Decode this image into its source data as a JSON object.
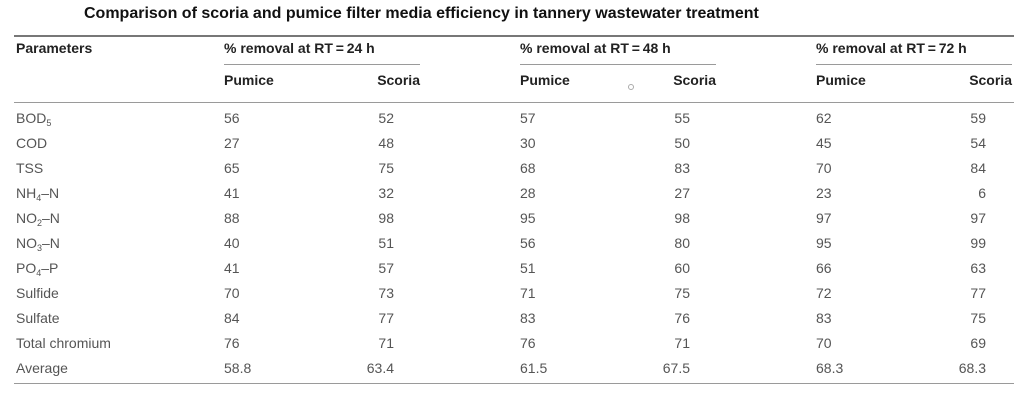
{
  "title": "Comparison of scoria and pumice filter media efficiency in tannery wastewater treatment",
  "header": {
    "parameters_label": "Parameters",
    "groups": [
      "% removal at RT = 24 h",
      "% removal at RT = 48 h",
      "% removal at RT = 72 h"
    ],
    "sub_labels": [
      "Pumice",
      "Scoria",
      "Pumice",
      "Scoria",
      "Pumice",
      "Scoria"
    ]
  },
  "rows": [
    {
      "param": "BOD",
      "sub": "5",
      "suffix": "",
      "values": [
        "56",
        "52",
        "57",
        "55",
        "62",
        "59"
      ]
    },
    {
      "param": "COD",
      "sub": "",
      "suffix": "",
      "values": [
        "27",
        "48",
        "30",
        "50",
        "45",
        "54"
      ]
    },
    {
      "param": "TSS",
      "sub": "",
      "suffix": "",
      "values": [
        "65",
        "75",
        "68",
        "83",
        "70",
        "84"
      ]
    },
    {
      "param": "NH",
      "sub": "4",
      "suffix": "–N",
      "values": [
        "41",
        "32",
        "28",
        "27",
        "23",
        "6"
      ]
    },
    {
      "param": "NO",
      "sub": "2",
      "suffix": "–N",
      "values": [
        "88",
        "98",
        "95",
        "98",
        "97",
        "97"
      ]
    },
    {
      "param": "NO",
      "sub": "3",
      "suffix": "–N",
      "values": [
        "40",
        "51",
        "56",
        "80",
        "95",
        "99"
      ]
    },
    {
      "param": "PO",
      "sub": "4",
      "suffix": "–P",
      "values": [
        "41",
        "57",
        "51",
        "60",
        "66",
        "63"
      ]
    },
    {
      "param": "Sulfide",
      "sub": "",
      "suffix": "",
      "values": [
        "70",
        "73",
        "71",
        "75",
        "72",
        "77"
      ]
    },
    {
      "param": "Sulfate",
      "sub": "",
      "suffix": "",
      "values": [
        "84",
        "77",
        "83",
        "76",
        "83",
        "75"
      ]
    },
    {
      "param": "Total chromium",
      "sub": "",
      "suffix": "",
      "values": [
        "76",
        "71",
        "76",
        "71",
        "70",
        "69"
      ]
    },
    {
      "param": "Average",
      "sub": "",
      "suffix": "",
      "values": [
        "58.8",
        "63.4",
        "61.5",
        "67.5",
        "68.3",
        "68.3"
      ]
    }
  ]
}
